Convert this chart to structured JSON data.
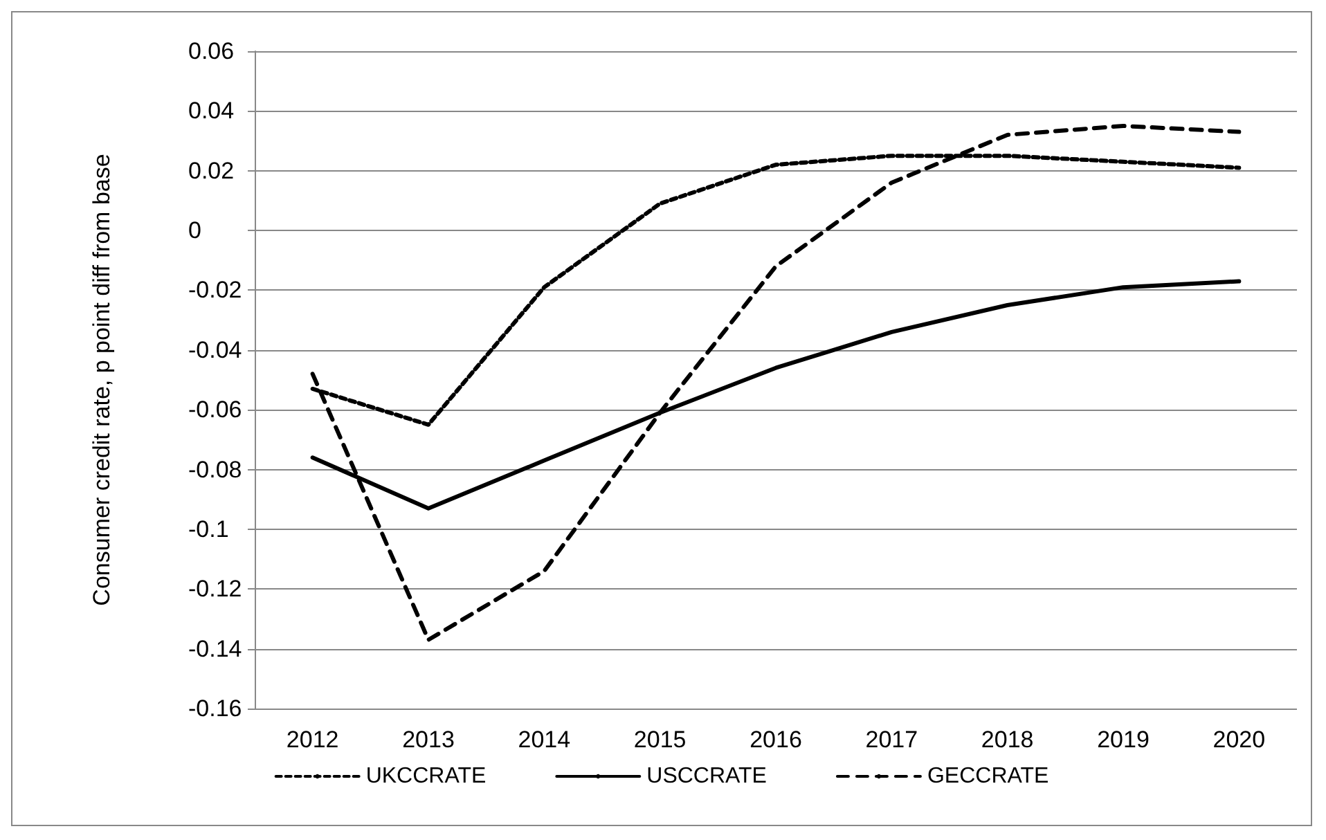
{
  "chart_data": {
    "type": "line",
    "ylabel": "Consumer credit rate, p point diff from base",
    "categories": [
      "2012",
      "2013",
      "2014",
      "2015",
      "2016",
      "2017",
      "2018",
      "2019",
      "2020"
    ],
    "series": [
      {
        "name": "UKCCRATE",
        "color": "#000000",
        "line_style": "dotted",
        "values": [
          -0.053,
          -0.065,
          -0.019,
          0.009,
          0.022,
          0.025,
          0.025,
          0.023,
          0.021
        ]
      },
      {
        "name": "USCCRATE",
        "color": "#000000",
        "line_style": "solid",
        "values": [
          -0.076,
          -0.093,
          -0.077,
          -0.061,
          -0.046,
          -0.034,
          -0.025,
          -0.019,
          -0.017
        ]
      },
      {
        "name": "GECCRATE",
        "color": "#000000",
        "line_style": "dashed",
        "values": [
          -0.048,
          -0.137,
          -0.114,
          -0.061,
          -0.012,
          0.016,
          0.032,
          0.035,
          0.033
        ]
      }
    ],
    "ylim": [
      -0.16,
      0.06
    ],
    "yticks": [
      -0.16,
      -0.14,
      -0.12,
      -0.1,
      -0.08,
      -0.06,
      -0.04,
      -0.02,
      0,
      0.02,
      0.04,
      0.06
    ],
    "grid": "y",
    "legend": "bottom",
    "marker": "none"
  }
}
